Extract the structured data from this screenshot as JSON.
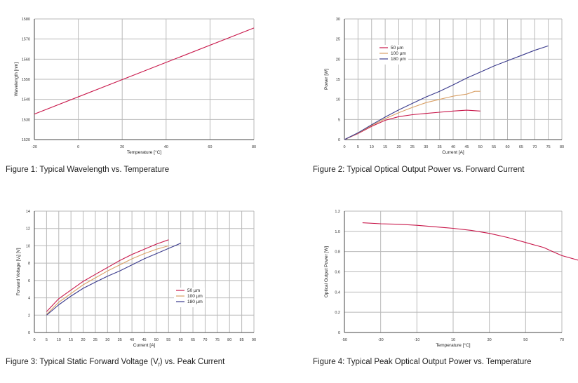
{
  "figures": [
    {
      "caption": "Figure 1: Typical Wavelength vs. Temperature",
      "chart_data": {
        "type": "line",
        "xlabel": "Temperature [°C]",
        "ylabel": "Wavelength [nm]",
        "xlim": [
          -20,
          80
        ],
        "ylim": [
          1520,
          1580
        ],
        "xticks": [
          "-20",
          "0",
          "20",
          "40",
          "60",
          "80"
        ],
        "yticks": [
          "1520",
          "1530",
          "1540",
          "1550",
          "1560",
          "1570",
          "1580"
        ],
        "grid": true,
        "series": [
          {
            "color": "#c8174a",
            "points": [
              [
                -20,
                1532.7
              ],
              [
                80,
                1575.5
              ]
            ]
          }
        ]
      }
    },
    {
      "caption": "Figure 2: Typical Optical Output Power vs. Forward Current",
      "chart_data": {
        "type": "line",
        "xlabel": "Current [A]",
        "ylabel": "Power [W]",
        "xlim": [
          0,
          80
        ],
        "ylim": [
          0,
          30
        ],
        "xticks": [
          "0",
          "5",
          "10",
          "15",
          "20",
          "25",
          "30",
          "35",
          "40",
          "45",
          "50",
          "55",
          "60",
          "65",
          "70",
          "75",
          "80"
        ],
        "yticks": [
          "0",
          "5",
          "10",
          "15",
          "20",
          "25",
          "30"
        ],
        "grid": true,
        "legend": "upper-left",
        "series": [
          {
            "name": "50 µm",
            "color": "#c8174a",
            "points": [
              [
                0,
                0
              ],
              [
                5,
                1.5
              ],
              [
                10,
                3.3
              ],
              [
                15,
                4.8
              ],
              [
                20,
                5.7
              ],
              [
                25,
                6.2
              ],
              [
                30,
                6.5
              ],
              [
                35,
                6.8
              ],
              [
                40,
                7.1
              ],
              [
                45,
                7.3
              ],
              [
                50,
                7.1
              ]
            ]
          },
          {
            "name": "100 µm",
            "color": "#d9a066",
            "points": [
              [
                0,
                0
              ],
              [
                5,
                1.6
              ],
              [
                10,
                3.5
              ],
              [
                15,
                5.2
              ],
              [
                20,
                6.7
              ],
              [
                25,
                8.0
              ],
              [
                30,
                9.2
              ],
              [
                35,
                10.0
              ],
              [
                40,
                10.8
              ],
              [
                45,
                11.3
              ],
              [
                48,
                12.0
              ],
              [
                50,
                12.0
              ]
            ]
          },
          {
            "name": "180 µm",
            "color": "#3a3a8c",
            "points": [
              [
                0,
                0
              ],
              [
                5,
                1.7
              ],
              [
                10,
                3.7
              ],
              [
                15,
                5.6
              ],
              [
                20,
                7.4
              ],
              [
                25,
                9.0
              ],
              [
                30,
                10.6
              ],
              [
                35,
                12.0
              ],
              [
                40,
                13.6
              ],
              [
                45,
                15.3
              ],
              [
                50,
                16.8
              ],
              [
                55,
                18.3
              ],
              [
                60,
                19.6
              ],
              [
                65,
                20.9
              ],
              [
                70,
                22.2
              ],
              [
                75,
                23.3
              ]
            ]
          }
        ]
      }
    },
    {
      "caption_prefix": "Figure 3: Typical Static Forward Voltage (V",
      "caption_sub": "f",
      "caption_suffix": ") vs. Peak Current",
      "chart_data": {
        "type": "line",
        "xlabel": "Current [A]",
        "ylabel": "Forward Voltage [V",
        "ylabel_sub": "f",
        "ylabel_suffix": "] [V]",
        "xlim": [
          0,
          90
        ],
        "ylim": [
          0,
          14
        ],
        "xticks": [
          "0",
          "5",
          "10",
          "15",
          "20",
          "25",
          "30",
          "35",
          "40",
          "45",
          "50",
          "55",
          "60",
          "65",
          "70",
          "75",
          "80",
          "85",
          "90"
        ],
        "yticks": [
          "0",
          "2",
          "4",
          "6",
          "8",
          "10",
          "12",
          "14"
        ],
        "grid": true,
        "legend": "lower-right",
        "series": [
          {
            "name": "50 µm",
            "color": "#c8174a",
            "points": [
              [
                5,
                2.4
              ],
              [
                10,
                3.9
              ],
              [
                15,
                4.9
              ],
              [
                20,
                5.9
              ],
              [
                25,
                6.7
              ],
              [
                30,
                7.5
              ],
              [
                35,
                8.3
              ],
              [
                40,
                9.0
              ],
              [
                45,
                9.6
              ],
              [
                50,
                10.2
              ],
              [
                55,
                10.7
              ]
            ]
          },
          {
            "name": "100 µm",
            "color": "#d9a066",
            "points": [
              [
                5,
                2.1
              ],
              [
                10,
                3.5
              ],
              [
                15,
                4.5
              ],
              [
                20,
                5.5
              ],
              [
                25,
                6.3
              ],
              [
                30,
                7.1
              ],
              [
                35,
                7.8
              ],
              [
                40,
                8.5
              ],
              [
                45,
                9.1
              ],
              [
                50,
                9.6
              ],
              [
                55,
                10.0
              ]
            ]
          },
          {
            "name": "180 µm",
            "color": "#3a3a8c",
            "points": [
              [
                5,
                2.0
              ],
              [
                10,
                3.2
              ],
              [
                15,
                4.2
              ],
              [
                20,
                5.1
              ],
              [
                25,
                5.8
              ],
              [
                30,
                6.5
              ],
              [
                35,
                7.1
              ],
              [
                40,
                7.8
              ],
              [
                45,
                8.5
              ],
              [
                50,
                9.1
              ],
              [
                55,
                9.7
              ],
              [
                60,
                10.3
              ]
            ]
          }
        ]
      }
    },
    {
      "caption": "Figure 4: Typical Peak Optical Output Power vs. Temperature",
      "chart_data": {
        "type": "line",
        "xlabel": "Temperature [°C]",
        "ylabel": "Optical Output Power [W]",
        "xlim": [
          -50,
          70
        ],
        "ylim": [
          0,
          1.2
        ],
        "xticks": [
          "-50",
          "-30",
          "-10",
          "10",
          "30",
          "50",
          "70"
        ],
        "yticks": [
          "0",
          "0.2",
          "0.4",
          "0.6",
          "0.8",
          "1.0",
          "1.2"
        ],
        "grid": true,
        "series": [
          {
            "color": "#c8174a",
            "points": [
              [
                -40,
                1.085
              ],
              [
                -30,
                1.075
              ],
              [
                -20,
                1.07
              ],
              [
                -10,
                1.06
              ],
              [
                0,
                1.045
              ],
              [
                10,
                1.03
              ],
              [
                20,
                1.01
              ],
              [
                30,
                0.98
              ],
              [
                40,
                0.94
              ],
              [
                50,
                0.89
              ],
              [
                60,
                0.84
              ],
              [
                65,
                0.8
              ],
              [
                70,
                0.76
              ],
              [
                80,
                0.71
              ]
            ]
          }
        ]
      }
    }
  ],
  "colors": {
    "line_red": "#c8174a",
    "line_tan": "#d9a066",
    "line_blue": "#3a3a8c",
    "grid": "#b9b9b9",
    "axis": "#444444"
  }
}
